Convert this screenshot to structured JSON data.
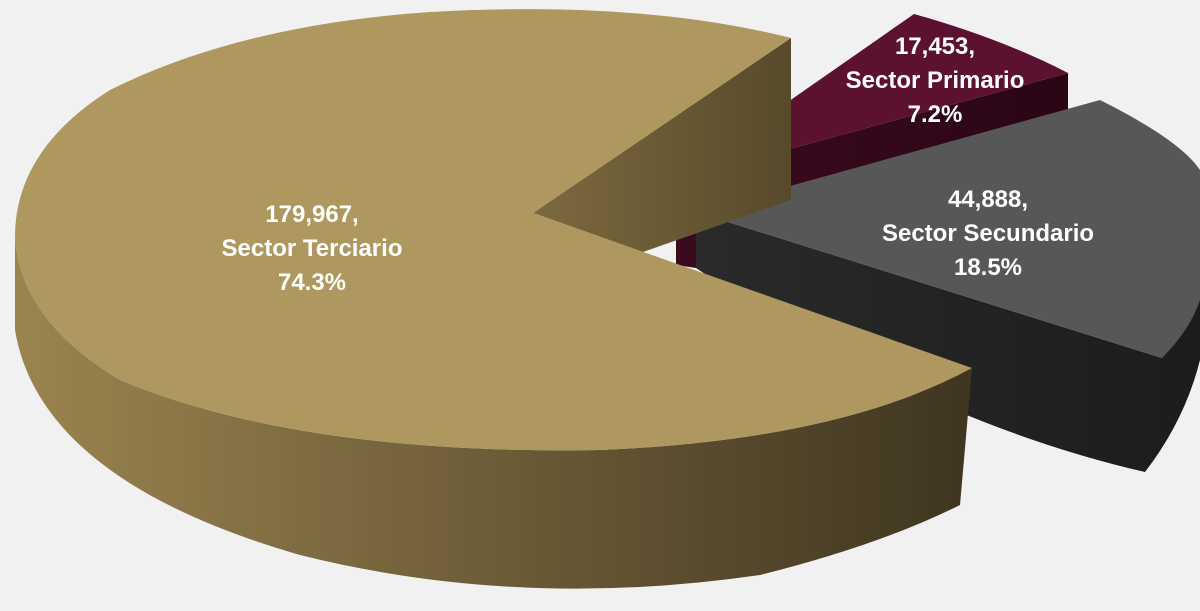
{
  "chart_data": {
    "type": "pie",
    "style": "3d-exploded",
    "slices": [
      {
        "name": "Sector Terciario",
        "value": 179967,
        "value_label": "179,967,",
        "percent_label": "74.3%",
        "color": "#ae9860"
      },
      {
        "name": "Sector Primario",
        "value": 17453,
        "value_label": "17,453,",
        "percent_label": "7.2%",
        "color": "#5c1131"
      },
      {
        "name": "Sector Secundario",
        "value": 44888,
        "value_label": "44,888,",
        "percent_label": "18.5%",
        "color": "#575757"
      }
    ]
  }
}
